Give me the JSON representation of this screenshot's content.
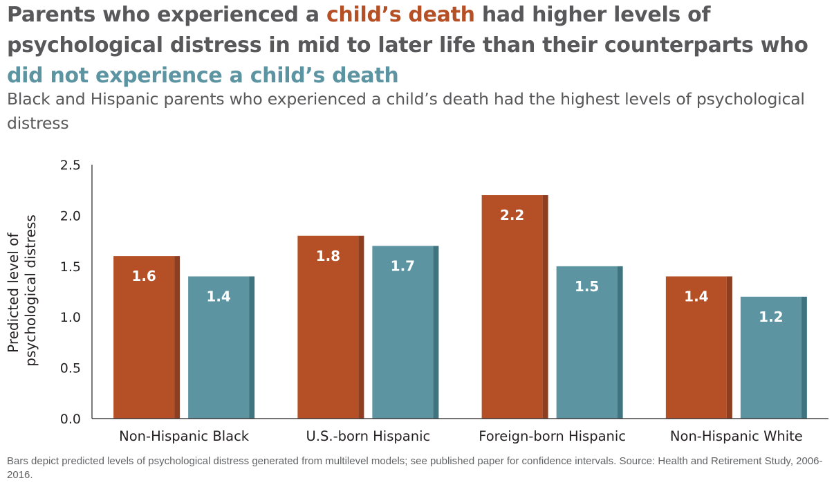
{
  "title": {
    "part1": "Parents who experienced a ",
    "highlight1": "child’s death",
    "part2": " had higher levels of psychological distress in mid to later life than their counterparts who",
    "highlight2": "did not experience a child’s death"
  },
  "subtitle": "Black and Hispanic parents who experienced a child’s death had the highest levels of psychological distress",
  "footnote": "Bars depict predicted levels of psychological distress generated from multilevel models; see published paper for confidence intervals. Source: Health and Retirement Study, 2006-2016.",
  "colors": {
    "experienced": "#b44f26",
    "experienced_shade": "#8e3d1f",
    "not_experienced": "#5c94a1",
    "not_experienced_shade": "#3d7480",
    "title_text": "#58585a",
    "axis": "#231f20"
  },
  "chart_data": {
    "type": "bar",
    "ylabel_lines": [
      "Predicted level of",
      "psychological distress"
    ],
    "ylim": [
      0,
      2.5
    ],
    "yticks": [
      "0.0",
      "0.5",
      "1.0",
      "1.5",
      "2.0",
      "2.5"
    ],
    "grid": false,
    "legend": "none",
    "categories": [
      "Non-Hispanic Black",
      "U.S.-born Hispanic",
      "Foreign-born Hispanic",
      "Non-Hispanic White"
    ],
    "series": [
      {
        "values": [
          1.6,
          1.8,
          2.2,
          1.4
        ],
        "labels": [
          "1.6",
          "1.8",
          "2.2",
          "1.4"
        ]
      },
      {
        "values": [
          1.4,
          1.7,
          1.5,
          1.2
        ],
        "labels": [
          "1.4",
          "1.7",
          "1.5",
          "1.2"
        ]
      }
    ]
  }
}
